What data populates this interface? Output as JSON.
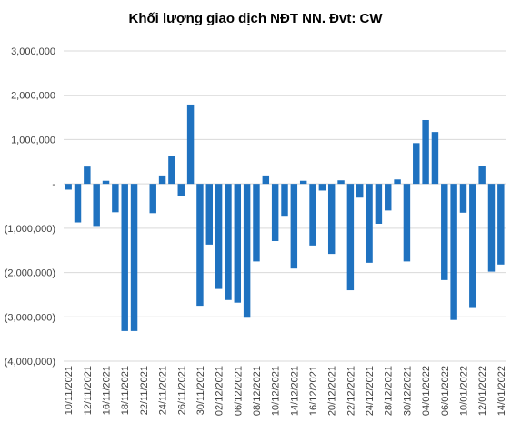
{
  "chart_data": {
    "type": "bar",
    "title": "Khối lượng giao dịch NĐT NN. Đvt: CW",
    "xlabel": "",
    "ylabel": "",
    "ylim": [
      -4000000,
      3000000
    ],
    "y_ticks": [
      3000000,
      2000000,
      1000000,
      0,
      -1000000,
      -2000000,
      -3000000,
      -4000000
    ],
    "y_tick_labels": [
      "3,000,000",
      "2,000,000",
      "1,000,000",
      "-",
      "(1,000,000)",
      "(2,000,000)",
      "(3,000,000)",
      "(4,000,000)"
    ],
    "grid": true,
    "legend": "none",
    "bar_color": "#1f72c0",
    "grid_color": "#d9d9d9",
    "x_tick_labels": [
      "10/11/2021",
      "12/11/2021",
      "16/11/2021",
      "18/11/2021",
      "22/11/2021",
      "24/11/2021",
      "26/11/2021",
      "30/11/2021",
      "02/12/2021",
      "06/12/2021",
      "08/12/2021",
      "10/12/2021",
      "14/12/2021",
      "16/12/2021",
      "20/12/2021",
      "22/12/2021",
      "24/12/2021",
      "28/12/2021",
      "30/12/2021",
      "04/01/2022",
      "06/01/2022",
      "10/01/2022",
      "12/01/2022",
      "14/01/2022"
    ],
    "values": [
      -130000,
      -870000,
      390000,
      -950000,
      70000,
      -640000,
      -3320000,
      -3320000,
      0,
      -660000,
      190000,
      630000,
      -280000,
      1790000,
      -2750000,
      -1370000,
      -2370000,
      -2620000,
      -2680000,
      -3020000,
      -1750000,
      190000,
      -1290000,
      -720000,
      -1910000,
      70000,
      -1390000,
      -150000,
      -1580000,
      80000,
      -2400000,
      -310000,
      -1780000,
      -900000,
      -600000,
      100000,
      -1750000,
      920000,
      1440000,
      1170000,
      -2170000,
      -3070000,
      -650000,
      -2800000,
      410000,
      -1980000,
      -1820000
    ]
  }
}
